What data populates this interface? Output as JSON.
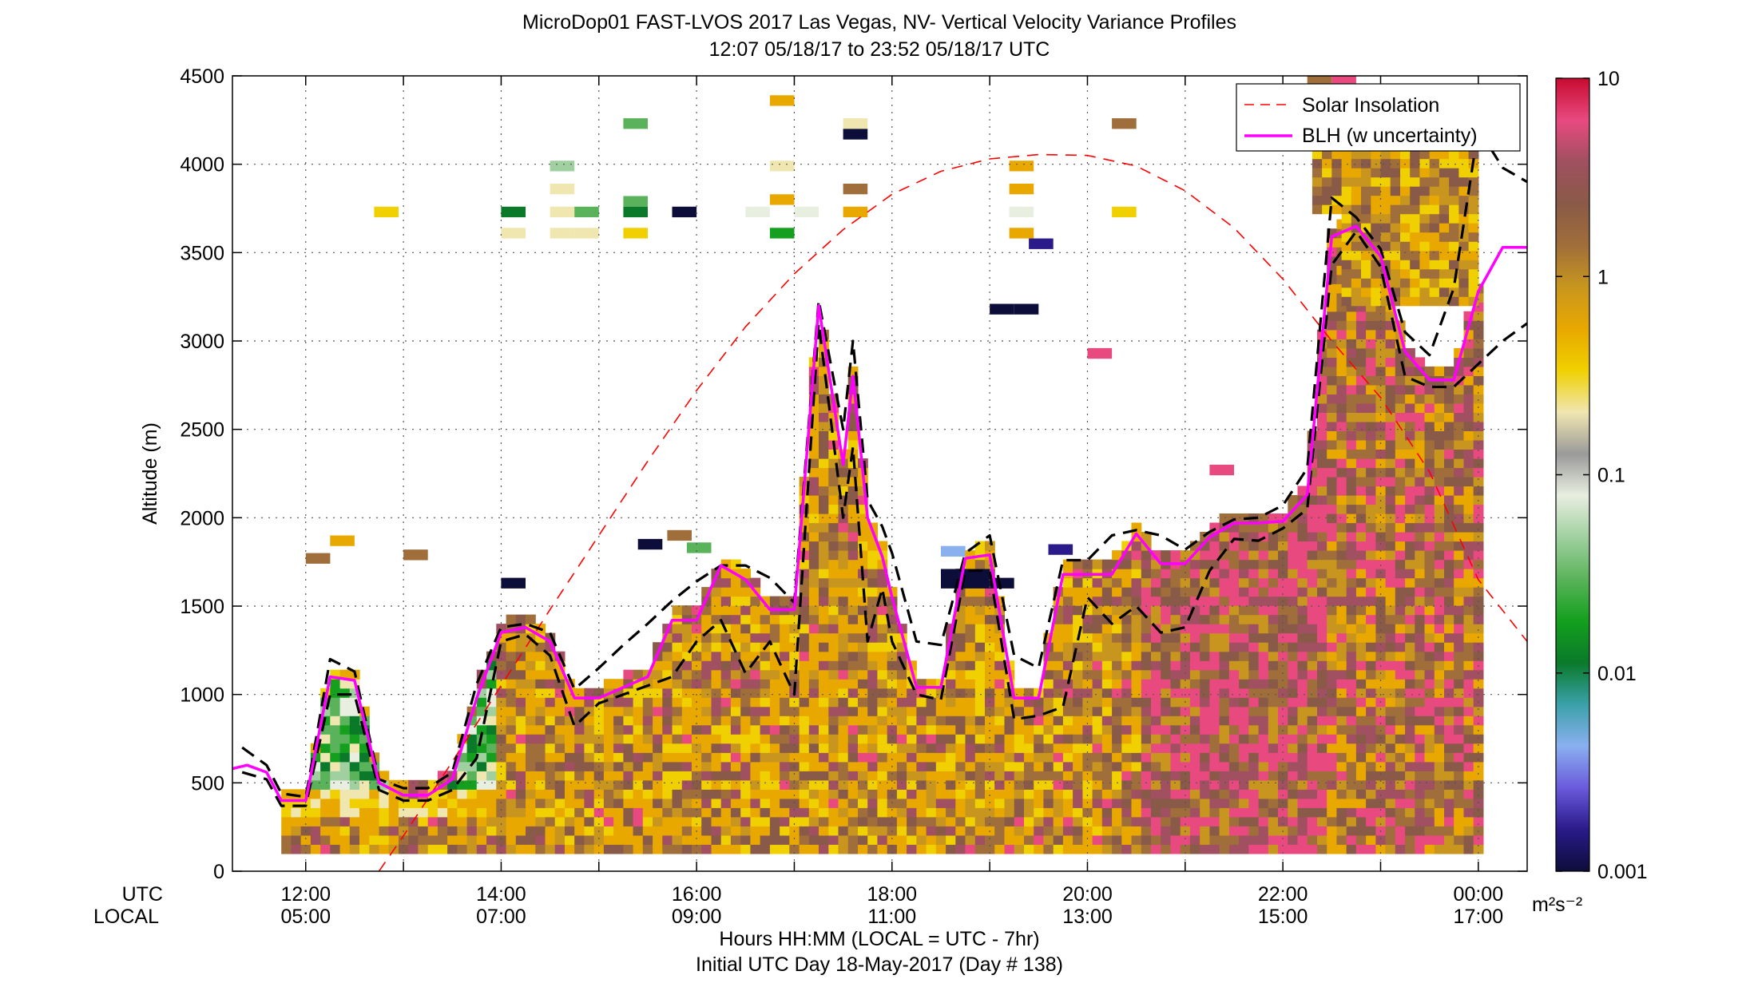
{
  "chart_data": {
    "type": "heatmap",
    "title": "MicroDop01 FAST-LVOS 2017 Las Vegas, NV- Vertical Velocity Variance Profiles",
    "subtitle": "12:07 05/18/17 to 23:52 05/18/17  UTC",
    "ylabel": "Altitude (m)",
    "xlabel": "Hours HH:MM  (LOCAL = UTC - 7hr)",
    "footer": "Initial UTC Day 18-May-2017 (Day # 138)",
    "utc_row_label": "UTC",
    "local_row_label": "LOCAL",
    "x_range_hours_utc": [
      11.25,
      24.5
    ],
    "ylim": [
      0,
      4500
    ],
    "y_ticks": [
      0,
      500,
      1000,
      1500,
      2000,
      2500,
      3000,
      3500,
      4000,
      4500
    ],
    "y_tick_labels": [
      "0",
      "500",
      "1000",
      "1500",
      "2000",
      "2500",
      "3000",
      "3500",
      "4000",
      "4500"
    ],
    "x_ticks_hours_utc": [
      12,
      14,
      16,
      18,
      20,
      22,
      24
    ],
    "x_tick_labels_utc": [
      "12:00",
      "14:00",
      "16:00",
      "18:00",
      "20:00",
      "22:00",
      "00:00"
    ],
    "x_tick_labels_local": [
      "05:00",
      "07:00",
      "09:00",
      "11:00",
      "13:00",
      "15:00",
      "17:00"
    ],
    "grid": true,
    "colorbar": {
      "scale": "log",
      "range": [
        0.001,
        10
      ],
      "tick_values": [
        0.001,
        0.01,
        0.1,
        1,
        10
      ],
      "tick_labels": [
        "0.001",
        "0.01",
        "0.1",
        "1",
        "10"
      ],
      "unit_label": "m²s⁻²",
      "colors": [
        "#0d0d3a",
        "#2a1a8a",
        "#6a5adc",
        "#8ab0f0",
        "#3aa0a8",
        "#0a7a2a",
        "#14a01e",
        "#5ab35a",
        "#a0d0a0",
        "#e8eee0",
        "#9a9a9a",
        "#f0e6b0",
        "#f0d000",
        "#e8a800",
        "#c8961e",
        "#a06e3a",
        "#8a5a48",
        "#a05060",
        "#e84a80",
        "#c80a30"
      ]
    },
    "legend": {
      "position": "top-right",
      "entries": [
        "Solar Insolation",
        "BLH (w uncertainty)"
      ]
    },
    "series": [
      {
        "name": "BLH (w uncertainty)",
        "color": "#ff00ff",
        "x": [
          11.25,
          11.4,
          11.6,
          11.75,
          12.0,
          12.25,
          12.5,
          12.75,
          13.0,
          13.25,
          13.5,
          13.75,
          14.0,
          14.25,
          14.5,
          14.75,
          15.0,
          15.25,
          15.5,
          15.75,
          16.0,
          16.25,
          16.5,
          16.75,
          17.0,
          17.25,
          17.5,
          17.6,
          17.75,
          17.9,
          18.0,
          18.25,
          18.5,
          18.75,
          19.0,
          19.25,
          19.5,
          19.75,
          20.0,
          20.25,
          20.5,
          20.75,
          21.0,
          21.25,
          21.5,
          21.75,
          22.0,
          22.25,
          22.5,
          22.75,
          23.0,
          23.25,
          23.5,
          23.75,
          24.0,
          24.25,
          24.5
        ],
        "y": [
          580,
          600,
          560,
          400,
          400,
          1100,
          1080,
          500,
          430,
          430,
          520,
          980,
          1350,
          1380,
          1300,
          980,
          980,
          1040,
          1100,
          1420,
          1420,
          1730,
          1650,
          1480,
          1480,
          3200,
          2300,
          2800,
          2000,
          1780,
          1550,
          1040,
          1040,
          1770,
          1790,
          980,
          980,
          1680,
          1680,
          1680,
          1910,
          1740,
          1740,
          1890,
          1970,
          1970,
          1980,
          2130,
          3590,
          3650,
          3480,
          2940,
          2780,
          2780,
          3280,
          3530,
          3530
        ]
      },
      {
        "name": "BLH upper bound",
        "color": "#000000",
        "x": [
          11.35,
          11.6,
          11.75,
          12.0,
          12.25,
          12.5,
          12.75,
          13.0,
          13.25,
          13.5,
          13.75,
          14.0,
          14.25,
          14.5,
          14.75,
          15.0,
          15.25,
          15.5,
          15.75,
          16.0,
          16.25,
          16.5,
          16.75,
          17.0,
          17.25,
          17.5,
          17.6,
          17.75,
          17.9,
          18.0,
          18.25,
          18.5,
          18.75,
          19.0,
          19.25,
          19.5,
          19.75,
          20.0,
          20.25,
          20.5,
          20.75,
          21.0,
          21.25,
          21.5,
          21.75,
          22.0,
          22.25,
          22.5,
          22.75,
          23.0,
          23.25,
          23.5,
          23.75,
          24.0,
          24.25,
          24.5
        ],
        "y": [
          700,
          600,
          440,
          420,
          1200,
          1130,
          520,
          470,
          470,
          560,
          1060,
          1380,
          1400,
          1350,
          1030,
          1150,
          1280,
          1400,
          1530,
          1640,
          1730,
          1730,
          1660,
          1520,
          3230,
          2500,
          3000,
          2100,
          1950,
          1800,
          1300,
          1280,
          1800,
          1900,
          1220,
          1150,
          1760,
          1760,
          1900,
          1930,
          1900,
          1820,
          1920,
          1990,
          2000,
          2070,
          2280,
          3810,
          3700,
          3520,
          3050,
          2920,
          3300,
          4200,
          3980,
          3900
        ]
      },
      {
        "name": "BLH lower bound",
        "color": "#000000",
        "x": [
          11.35,
          11.6,
          11.75,
          12.0,
          12.25,
          12.5,
          12.75,
          13.0,
          13.25,
          13.5,
          13.75,
          14.0,
          14.25,
          14.5,
          14.75,
          15.0,
          15.25,
          15.5,
          15.75,
          16.0,
          16.25,
          16.5,
          16.75,
          17.0,
          17.25,
          17.5,
          17.6,
          17.75,
          17.9,
          18.0,
          18.25,
          18.5,
          18.75,
          19.0,
          19.25,
          19.5,
          19.75,
          20.0,
          20.25,
          20.5,
          20.75,
          21.0,
          21.25,
          21.5,
          21.75,
          22.0,
          22.25,
          22.5,
          22.75,
          23.0,
          23.25,
          23.5,
          23.75,
          24.0,
          24.25,
          24.5
        ],
        "y": [
          560,
          520,
          370,
          370,
          1000,
          1000,
          460,
          400,
          400,
          460,
          640,
          1300,
          1340,
          1220,
          820,
          950,
          1000,
          1050,
          1100,
          1300,
          1420,
          1120,
          1300,
          1000,
          3100,
          2000,
          2400,
          1300,
          1600,
          1300,
          1000,
          970,
          1700,
          1700,
          860,
          880,
          930,
          1550,
          1400,
          1500,
          1350,
          1380,
          1700,
          1880,
          1870,
          1940,
          2050,
          3430,
          3620,
          3420,
          2800,
          2740,
          2740,
          2870,
          3000,
          3100
        ]
      },
      {
        "name": "Solar Insolation",
        "color": "#ff0000",
        "x": [
          12.75,
          13.0,
          13.5,
          14.0,
          14.5,
          15.0,
          15.5,
          16.0,
          16.5,
          17.0,
          17.5,
          18.0,
          18.5,
          19.0,
          19.5,
          20.0,
          20.5,
          21.0,
          21.5,
          22.0,
          22.5,
          23.0,
          23.5,
          24.0,
          24.5
        ],
        "y": [
          0,
          200,
          620,
          1050,
          1480,
          1900,
          2320,
          2720,
          3080,
          3380,
          3630,
          3830,
          3960,
          4030,
          4055,
          4050,
          3990,
          3850,
          3640,
          3350,
          3000,
          2680,
          2260,
          1650,
          1300
        ]
      }
    ]
  }
}
